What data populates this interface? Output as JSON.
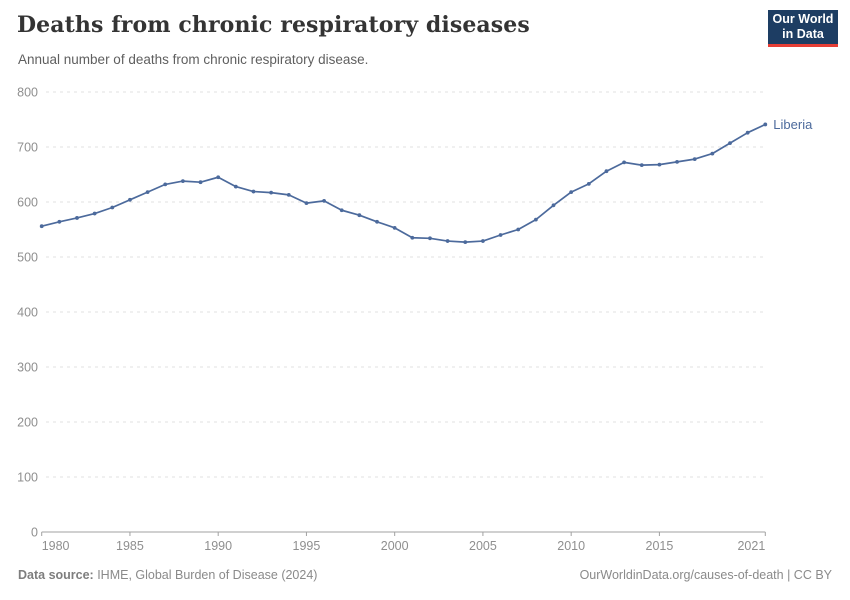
{
  "header": {
    "title": "Deaths from chronic respiratory diseases",
    "subtitle": "Annual number of deaths from chronic respiratory disease."
  },
  "logo": {
    "line1": "Our World",
    "line2": "in Data",
    "bg_color": "#1d3d63",
    "accent_color": "#e63e36"
  },
  "chart_data": {
    "type": "line",
    "title": "Deaths from chronic respiratory diseases",
    "xlabel": "",
    "ylabel": "",
    "xlim": [
      1980,
      2021
    ],
    "ylim": [
      0,
      800
    ],
    "grid": "dashed-horizontal",
    "legend": "end-of-line-label",
    "x_ticks": [
      1980,
      1985,
      1990,
      1995,
      2000,
      2005,
      2010,
      2015,
      2021
    ],
    "y_ticks": [
      0,
      100,
      200,
      300,
      400,
      500,
      600,
      700,
      800
    ],
    "series": [
      {
        "name": "Liberia",
        "color": "#4C6A9C",
        "x": [
          1980,
          1981,
          1982,
          1983,
          1984,
          1985,
          1986,
          1987,
          1988,
          1989,
          1990,
          1991,
          1992,
          1993,
          1994,
          1995,
          1996,
          1997,
          1998,
          1999,
          2000,
          2001,
          2002,
          2003,
          2004,
          2005,
          2006,
          2007,
          2008,
          2009,
          2010,
          2011,
          2012,
          2013,
          2014,
          2015,
          2016,
          2017,
          2018,
          2019,
          2020,
          2021
        ],
        "values": [
          556,
          564,
          571,
          579,
          590,
          604,
          618,
          632,
          638,
          636,
          645,
          628,
          619,
          617,
          613,
          598,
          602,
          585,
          576,
          564,
          553,
          535,
          534,
          529,
          527,
          529,
          540,
          550,
          568,
          594,
          618,
          633,
          656,
          672,
          667,
          668,
          673,
          678,
          688,
          707,
          726,
          741
        ]
      }
    ]
  },
  "footer": {
    "source_label": "Data source:",
    "source_value": " IHME, Global Burden of Disease (2024)",
    "license": "OurWorldinData.org/causes-of-death | CC BY"
  },
  "colors": {
    "series_blue": "#4C6A9C",
    "grid": "#e0e0e0",
    "axis": "#a1a1a1",
    "tick_label": "#8f8f8f",
    "title_text": "#343434",
    "subtitle_text": "#5f5f5f",
    "footer_text": "#8a8a8a"
  }
}
